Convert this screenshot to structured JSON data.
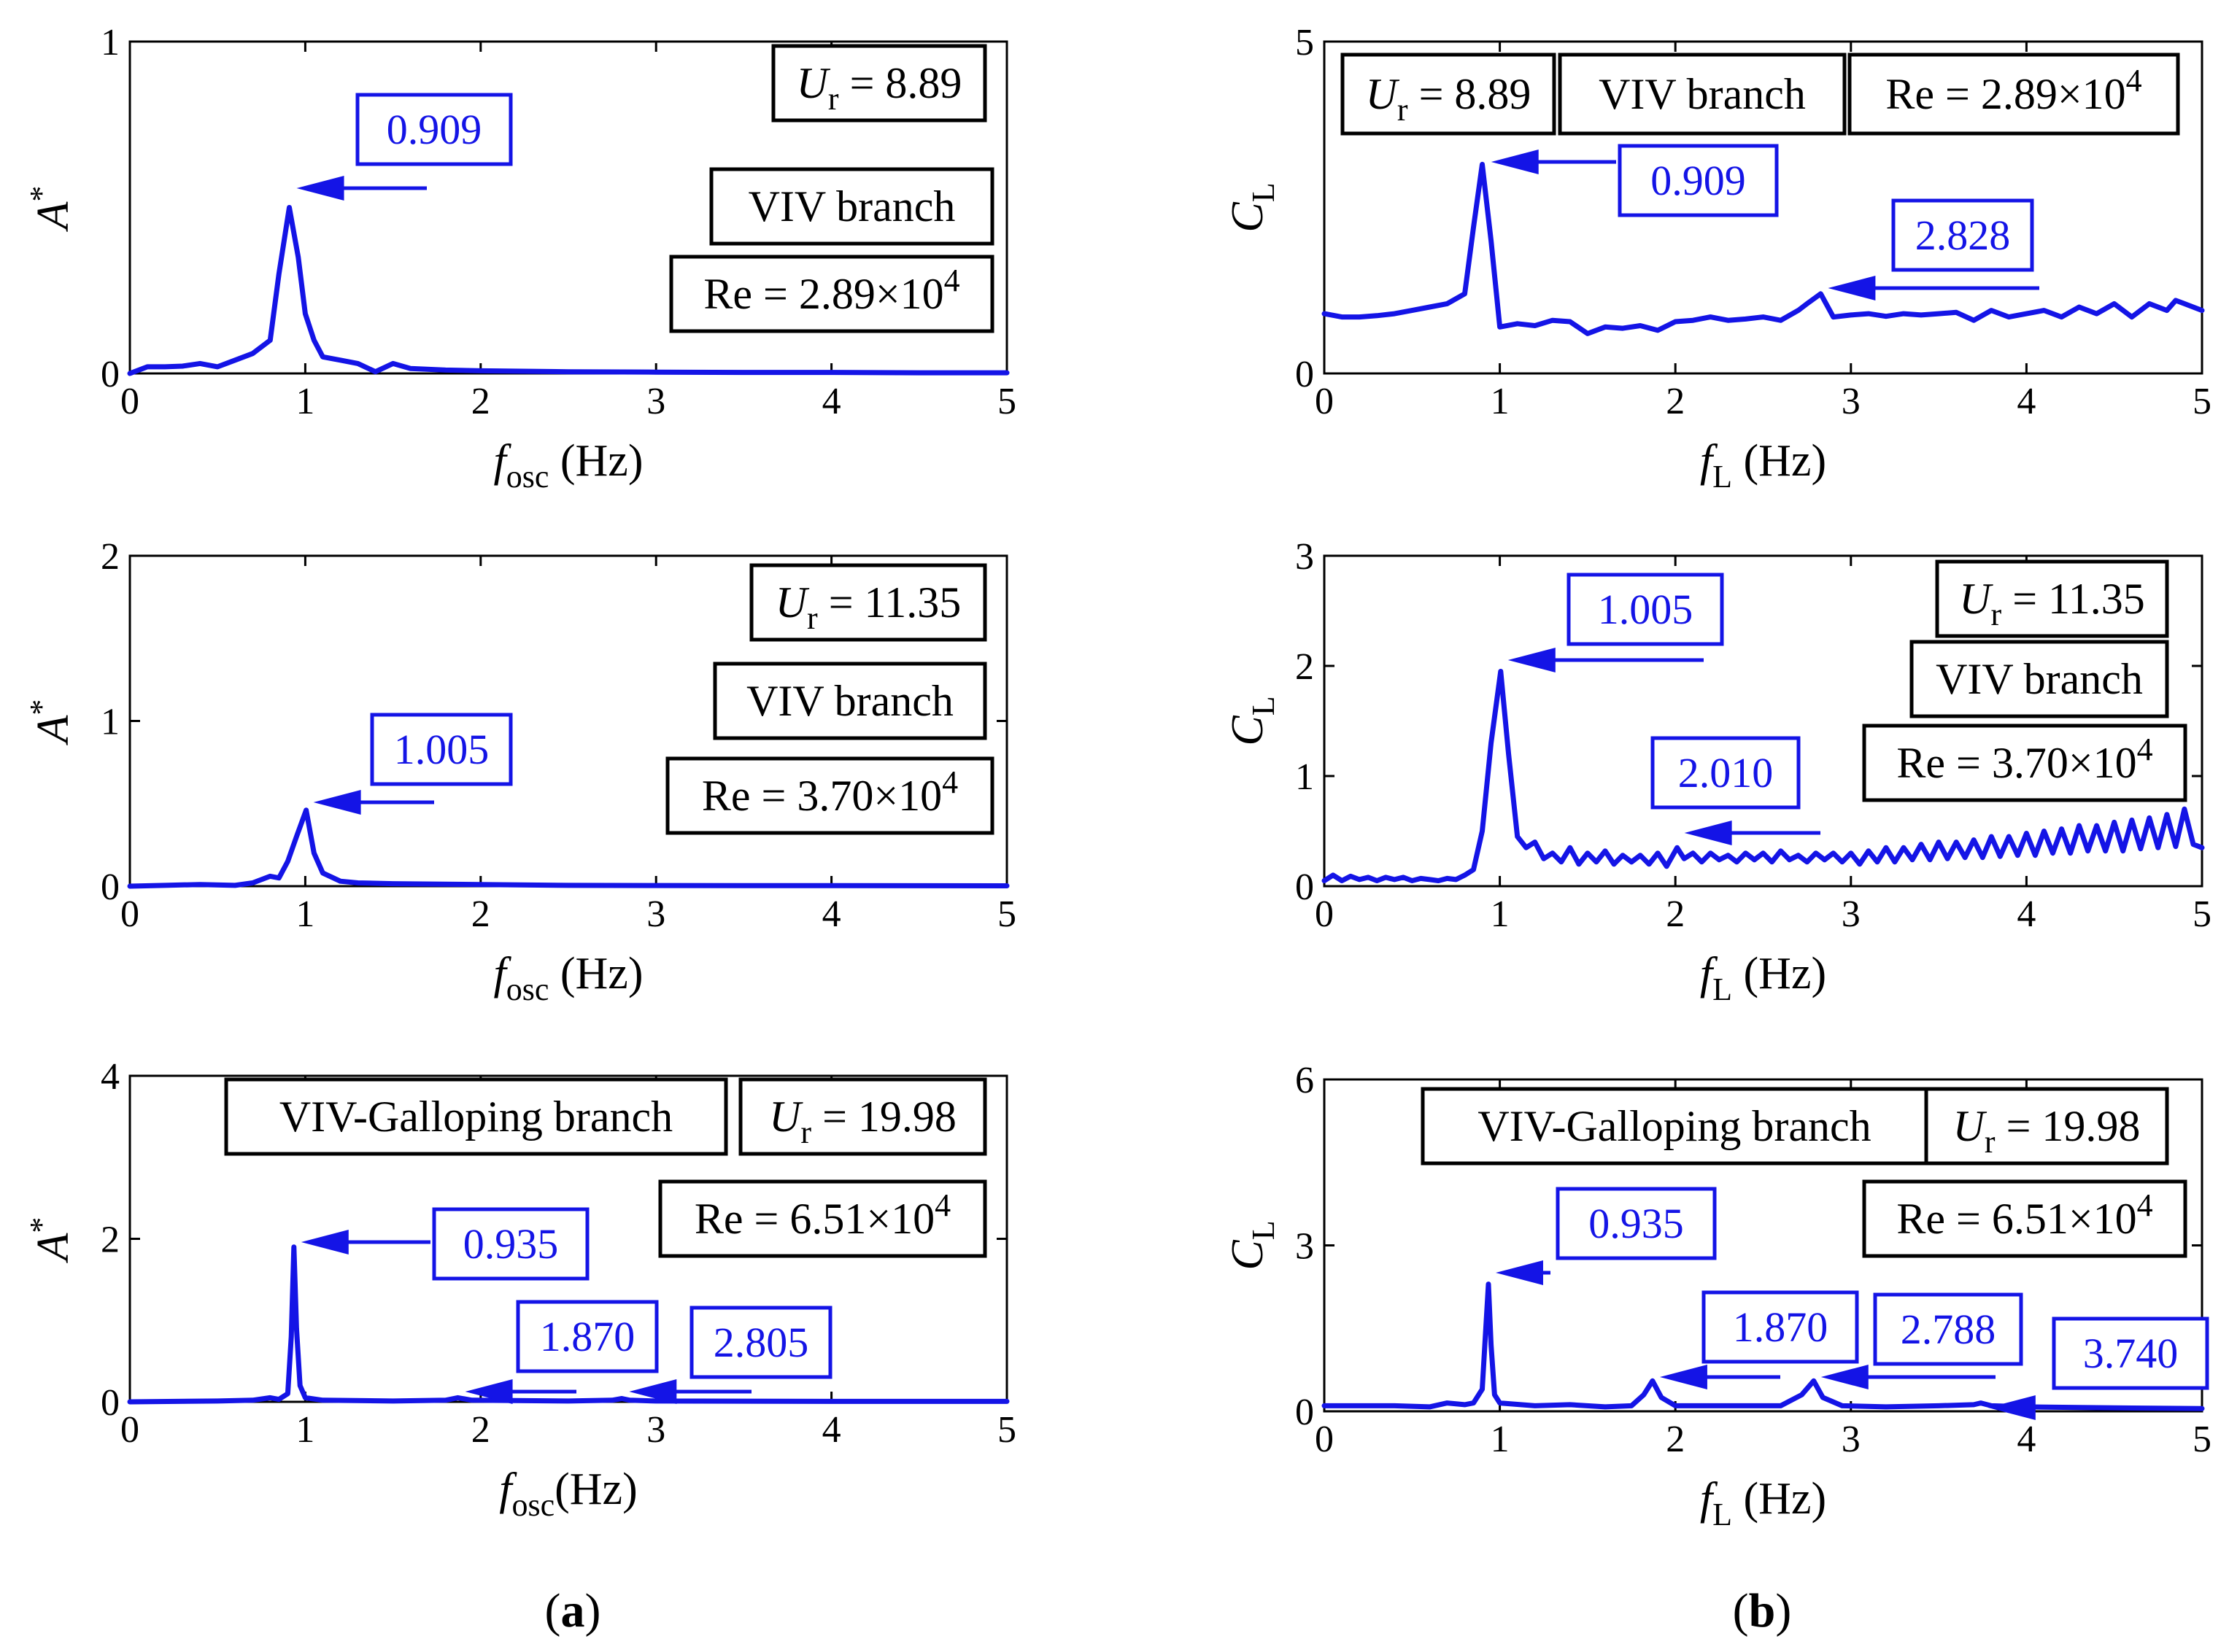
{
  "colors": {
    "series": "#1414e6",
    "axis": "#000000",
    "background": "#ffffff"
  },
  "panel_labels": [
    {
      "open": "(",
      "letter": "a",
      "close": ")"
    },
    {
      "open": "(",
      "letter": "b",
      "close": ")"
    }
  ],
  "chart_data": [
    {
      "type": "line",
      "id": "a1",
      "ylabel_main": "A",
      "ylabel_sup": "*",
      "xlabel_main": "f",
      "xlabel_sub": "osc",
      "xlabel_unit": " (Hz)",
      "xlim": [
        0,
        5
      ],
      "ylim": [
        0,
        1
      ],
      "xticks": [
        "0",
        "1",
        "2",
        "3",
        "4",
        "5"
      ],
      "yticks": [
        "0",
        "1"
      ],
      "x": [
        0,
        0.1,
        0.2,
        0.3,
        0.4,
        0.5,
        0.6,
        0.7,
        0.8,
        0.85,
        0.909,
        0.96,
        1.0,
        1.05,
        1.1,
        1.2,
        1.3,
        1.4,
        1.5,
        1.6,
        1.8,
        2.0,
        2.5,
        3.0,
        3.5,
        4.0,
        4.5,
        5.0
      ],
      "y": [
        0.0,
        0.02,
        0.02,
        0.022,
        0.03,
        0.02,
        0.04,
        0.06,
        0.1,
        0.3,
        0.5,
        0.35,
        0.18,
        0.1,
        0.05,
        0.04,
        0.03,
        0.005,
        0.03,
        0.015,
        0.01,
        0.008,
        0.005,
        0.004,
        0.003,
        0.003,
        0.002,
        0.002
      ],
      "annotations": [
        {
          "text": "0.909",
          "x": 0.909,
          "y": 0.5
        }
      ],
      "boxes": [
        {
          "main": "U",
          "sub": "r",
          "rest": " = 8.89"
        },
        {
          "main": "VIV branch"
        },
        {
          "main": "Re = 2.89×10",
          "sup": "4"
        }
      ]
    },
    {
      "type": "line",
      "id": "a2",
      "ylabel_main": "A",
      "ylabel_sup": "*",
      "xlabel_main": "f",
      "xlabel_sub": "osc",
      "xlabel_unit": " (Hz)",
      "xlim": [
        0,
        5
      ],
      "ylim": [
        0,
        2
      ],
      "xticks": [
        "0",
        "1",
        "2",
        "3",
        "4",
        "5"
      ],
      "yticks": [
        "0",
        "1",
        "2"
      ],
      "x": [
        0,
        0.2,
        0.4,
        0.6,
        0.7,
        0.8,
        0.85,
        0.9,
        0.95,
        1.005,
        1.05,
        1.1,
        1.2,
        1.3,
        1.5,
        2.0,
        2.5,
        3.0,
        4.0,
        5.0
      ],
      "y": [
        0.0,
        0.005,
        0.01,
        0.005,
        0.02,
        0.06,
        0.05,
        0.15,
        0.3,
        0.46,
        0.2,
        0.08,
        0.03,
        0.02,
        0.015,
        0.01,
        0.005,
        0.004,
        0.003,
        0.002
      ],
      "annotations": [
        {
          "text": "1.005",
          "x": 1.005,
          "y": 0.46
        }
      ],
      "boxes": [
        {
          "main": "U",
          "sub": "r",
          "rest": " = 11.35"
        },
        {
          "main": "VIV branch"
        },
        {
          "main": "Re = 3.70×10",
          "sup": "4"
        }
      ]
    },
    {
      "type": "line",
      "id": "a3",
      "ylabel_main": "A",
      "ylabel_sup": "*",
      "xlabel_main": "f",
      "xlabel_sub": "osc",
      "xlabel_unit": "(Hz)",
      "xlim": [
        0,
        5
      ],
      "ylim": [
        0,
        4
      ],
      "xticks": [
        "0",
        "1",
        "2",
        "3",
        "4",
        "5"
      ],
      "yticks": [
        "0",
        "2",
        "4"
      ],
      "x": [
        0,
        0.5,
        0.7,
        0.8,
        0.85,
        0.9,
        0.92,
        0.935,
        0.95,
        0.97,
        1.0,
        1.1,
        1.5,
        1.8,
        1.87,
        1.95,
        2.5,
        2.75,
        2.805,
        2.85,
        3.0,
        4.0,
        5.0
      ],
      "y": [
        0.0,
        0.01,
        0.02,
        0.05,
        0.03,
        0.1,
        0.8,
        1.9,
        0.9,
        0.2,
        0.05,
        0.02,
        0.01,
        0.02,
        0.05,
        0.02,
        0.01,
        0.02,
        0.04,
        0.02,
        0.01,
        0.005,
        0.005
      ],
      "annotations": [
        {
          "text": "0.935",
          "x": 0.935,
          "y": 1.9
        },
        {
          "text": "1.870",
          "x": 1.87,
          "y": 0.05
        },
        {
          "text": "2.805",
          "x": 2.805,
          "y": 0.04
        }
      ],
      "boxes": [
        {
          "main": "VIV-Galloping branch"
        },
        {
          "main": "U",
          "sub": "r",
          "rest": " = 19.98"
        },
        {
          "main": "Re = 6.51×10",
          "sup": "4"
        }
      ]
    },
    {
      "type": "line",
      "id": "b1",
      "ylabel_main": "C",
      "ylabel_sub": "L",
      "xlabel_main": "f",
      "xlabel_sub": "L",
      "xlabel_unit": " (Hz)",
      "xlim": [
        0,
        5
      ],
      "ylim": [
        0,
        5
      ],
      "xticks": [
        "0",
        "1",
        "2",
        "3",
        "4",
        "5"
      ],
      "yticks": [
        "0",
        "5"
      ],
      "x": [
        0,
        0.1,
        0.2,
        0.3,
        0.4,
        0.5,
        0.6,
        0.7,
        0.8,
        0.85,
        0.9,
        0.95,
        1.0,
        1.1,
        1.2,
        1.3,
        1.4,
        1.5,
        1.6,
        1.7,
        1.8,
        1.9,
        2.0,
        2.1,
        2.2,
        2.3,
        2.4,
        2.5,
        2.6,
        2.7,
        2.75,
        2.828,
        2.9,
        3.0,
        3.1,
        3.2,
        3.3,
        3.4,
        3.5,
        3.6,
        3.7,
        3.8,
        3.9,
        4.0,
        4.1,
        4.2,
        4.3,
        4.4,
        4.5,
        4.6,
        4.7,
        4.8,
        4.85,
        4.9,
        5.0
      ],
      "y": [
        0.9,
        0.85,
        0.85,
        0.87,
        0.9,
        0.95,
        1.0,
        1.05,
        1.2,
        2.2,
        3.15,
        2.0,
        0.7,
        0.75,
        0.72,
        0.8,
        0.78,
        0.6,
        0.7,
        0.68,
        0.72,
        0.65,
        0.78,
        0.8,
        0.85,
        0.8,
        0.82,
        0.85,
        0.8,
        0.95,
        1.05,
        1.2,
        0.85,
        0.88,
        0.9,
        0.86,
        0.9,
        0.88,
        0.9,
        0.92,
        0.8,
        0.95,
        0.85,
        0.9,
        0.95,
        0.85,
        1.0,
        0.9,
        1.05,
        0.85,
        1.05,
        0.95,
        1.1,
        1.05,
        0.95
      ],
      "annotations": [
        {
          "text": "0.909",
          "x": 0.909,
          "y": 3.15
        },
        {
          "text": "2.828",
          "x": 2.828,
          "y": 1.2
        }
      ],
      "boxes": [
        {
          "main": "U",
          "sub": "r",
          "rest": " = 8.89"
        },
        {
          "main": "VIV branch"
        },
        {
          "main": "Re = 2.89×10",
          "sup": "4"
        }
      ]
    },
    {
      "type": "line",
      "id": "b2",
      "ylabel_main": "C",
      "ylabel_sub": "L",
      "xlabel_main": "f",
      "xlabel_sub": "L",
      "xlabel_unit": " (Hz)",
      "xlim": [
        0,
        5
      ],
      "ylim": [
        0,
        3
      ],
      "xticks": [
        "0",
        "1",
        "2",
        "3",
        "4",
        "5"
      ],
      "yticks": [
        "0",
        "1",
        "2",
        "3"
      ],
      "x": [
        0,
        0.05,
        0.1,
        0.15,
        0.2,
        0.25,
        0.3,
        0.35,
        0.4,
        0.45,
        0.5,
        0.55,
        0.6,
        0.65,
        0.7,
        0.75,
        0.8,
        0.85,
        0.9,
        0.95,
        1.005,
        1.05,
        1.1,
        1.15,
        1.2,
        1.25,
        1.3,
        1.35,
        1.4,
        1.45,
        1.5,
        1.55,
        1.6,
        1.65,
        1.7,
        1.75,
        1.8,
        1.85,
        1.9,
        1.95,
        2.01,
        2.05,
        2.1,
        2.15,
        2.2,
        2.25,
        2.3,
        2.35,
        2.4,
        2.45,
        2.5,
        2.55,
        2.6,
        2.65,
        2.7,
        2.75,
        2.8,
        2.85,
        2.9,
        2.95,
        3.0,
        3.05,
        3.1,
        3.15,
        3.2,
        3.25,
        3.3,
        3.35,
        3.4,
        3.45,
        3.5,
        3.55,
        3.6,
        3.65,
        3.7,
        3.75,
        3.8,
        3.85,
        3.9,
        3.95,
        4.0,
        4.05,
        4.1,
        4.15,
        4.2,
        4.25,
        4.3,
        4.35,
        4.4,
        4.45,
        4.5,
        4.55,
        4.6,
        4.65,
        4.7,
        4.75,
        4.8,
        4.85,
        4.9,
        4.95,
        5.0
      ],
      "y": [
        0.05,
        0.1,
        0.05,
        0.09,
        0.06,
        0.08,
        0.05,
        0.08,
        0.06,
        0.08,
        0.05,
        0.07,
        0.06,
        0.05,
        0.07,
        0.06,
        0.1,
        0.15,
        0.5,
        1.3,
        1.95,
        1.2,
        0.45,
        0.35,
        0.4,
        0.25,
        0.3,
        0.22,
        0.35,
        0.2,
        0.3,
        0.22,
        0.32,
        0.2,
        0.28,
        0.22,
        0.28,
        0.2,
        0.3,
        0.18,
        0.35,
        0.25,
        0.3,
        0.22,
        0.3,
        0.24,
        0.28,
        0.22,
        0.3,
        0.24,
        0.3,
        0.22,
        0.32,
        0.24,
        0.28,
        0.22,
        0.3,
        0.24,
        0.3,
        0.22,
        0.3,
        0.2,
        0.32,
        0.22,
        0.35,
        0.22,
        0.35,
        0.24,
        0.38,
        0.24,
        0.4,
        0.25,
        0.4,
        0.26,
        0.42,
        0.26,
        0.45,
        0.27,
        0.45,
        0.28,
        0.48,
        0.28,
        0.5,
        0.3,
        0.52,
        0.3,
        0.55,
        0.32,
        0.55,
        0.32,
        0.58,
        0.32,
        0.6,
        0.34,
        0.62,
        0.35,
        0.65,
        0.36,
        0.7,
        0.38,
        0.35
      ],
      "annotations": [
        {
          "text": "1.005",
          "x": 1.005,
          "y": 1.95
        },
        {
          "text": "2.010",
          "x": 2.01,
          "y": 0.35
        }
      ],
      "boxes": [
        {
          "main": "U",
          "sub": "r",
          "rest": " = 11.35"
        },
        {
          "main": "VIV branch"
        },
        {
          "main": "Re = 3.70×10",
          "sup": "4"
        }
      ]
    },
    {
      "type": "line",
      "id": "b3",
      "ylabel_main": "C",
      "ylabel_sub": "L",
      "xlabel_main": "f",
      "xlabel_sub": "L",
      "xlabel_unit": " (Hz)",
      "xlim": [
        0,
        5
      ],
      "ylim": [
        0,
        6
      ],
      "xticks": [
        "0",
        "1",
        "2",
        "3",
        "4",
        "5"
      ],
      "yticks": [
        "0",
        "3",
        "6"
      ],
      "x": [
        0,
        0.2,
        0.4,
        0.6,
        0.7,
        0.8,
        0.85,
        0.9,
        0.92,
        0.935,
        0.95,
        0.97,
        1.0,
        1.2,
        1.4,
        1.6,
        1.75,
        1.82,
        1.87,
        1.92,
        2.0,
        2.3,
        2.6,
        2.72,
        2.788,
        2.84,
        2.95,
        3.2,
        3.5,
        3.7,
        3.74,
        3.8,
        4.0,
        4.3,
        4.6,
        5.0
      ],
      "y": [
        0.1,
        0.1,
        0.1,
        0.08,
        0.15,
        0.12,
        0.15,
        0.4,
        1.5,
        2.3,
        1.2,
        0.3,
        0.15,
        0.1,
        0.12,
        0.08,
        0.1,
        0.3,
        0.55,
        0.25,
        0.1,
        0.1,
        0.1,
        0.3,
        0.55,
        0.25,
        0.1,
        0.08,
        0.1,
        0.12,
        0.15,
        0.1,
        0.08,
        0.07,
        0.06,
        0.05
      ],
      "annotations": [
        {
          "text": "0.935",
          "x": 0.935,
          "y": 2.3
        },
        {
          "text": "1.870",
          "x": 1.87,
          "y": 0.55
        },
        {
          "text": "2.788",
          "x": 2.788,
          "y": 0.55
        },
        {
          "text": "3.740",
          "x": 3.74,
          "y": 0.15
        }
      ],
      "boxes": [
        {
          "main": "VIV-Galloping branch"
        },
        {
          "main": "U",
          "sub": "r",
          "rest": " = 19.98"
        },
        {
          "main": "Re = 6.51×10",
          "sup": "4"
        }
      ]
    }
  ]
}
